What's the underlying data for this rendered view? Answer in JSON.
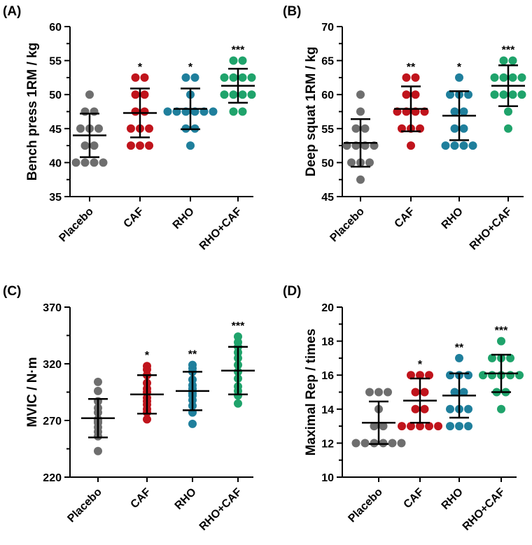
{
  "colors": {
    "Placebo": "#6e6e6e",
    "CAF": "#c0141c",
    "RHO": "#1f7f9c",
    "RHO+CAF": "#1fa36b",
    "axis": "#000000",
    "mean_sd": "#000000"
  },
  "chart_data": [
    {
      "type": "scatter",
      "panel_label": "(A)",
      "ylabel": "Bench press 1RM / kg",
      "ylim": [
        35,
        60
      ],
      "yticks": [
        35,
        40,
        45,
        50,
        55,
        60
      ],
      "categories": [
        "Placebo",
        "CAF",
        "RHO",
        "RHO+CAF"
      ],
      "series": [
        {
          "name": "Placebo",
          "mean": 44.0,
          "sd": 3.2,
          "significance": "",
          "values": [
            50,
            47.5,
            47.5,
            45,
            45,
            45,
            42.5,
            42.5,
            40,
            40,
            40,
            40
          ]
        },
        {
          "name": "CAF",
          "mean": 47.3,
          "sd": 3.6,
          "significance": "*",
          "values": [
            52.5,
            52.5,
            50,
            50,
            47.5,
            47.5,
            45,
            45,
            45,
            42.5,
            42.5,
            42.5
          ]
        },
        {
          "name": "RHO",
          "mean": 47.9,
          "sd": 3.0,
          "significance": "*",
          "values": [
            52.5,
            52.5,
            50,
            47.5,
            47.5,
            47.5,
            47.5,
            47.5,
            47.5,
            45,
            45,
            42.5
          ]
        },
        {
          "name": "RHO+CAF",
          "mean": 51.3,
          "sd": 2.5,
          "significance": "***",
          "values": [
            55,
            55,
            52.5,
            52.5,
            52.5,
            52.5,
            50,
            50,
            50,
            50,
            47.5,
            47.5
          ]
        }
      ]
    },
    {
      "type": "scatter",
      "panel_label": "(B)",
      "ylabel": "Deep squat 1RM / kg",
      "ylim": [
        45,
        70
      ],
      "yticks": [
        45,
        50,
        55,
        60,
        65,
        70
      ],
      "categories": [
        "Placebo",
        "CAF",
        "RHO",
        "RHO+CAF"
      ],
      "series": [
        {
          "name": "Placebo",
          "mean": 52.9,
          "sd": 3.5,
          "significance": "",
          "values": [
            60,
            57.5,
            55,
            55,
            52.5,
            52.5,
            52.5,
            52.5,
            50,
            50,
            50,
            47.5
          ]
        },
        {
          "name": "CAF",
          "mean": 57.9,
          "sd": 3.3,
          "significance": "**",
          "values": [
            62.5,
            62.5,
            60,
            60,
            57.5,
            57.5,
            57.5,
            57.5,
            55,
            55,
            55,
            52.5
          ]
        },
        {
          "name": "RHO",
          "mean": 56.9,
          "sd": 3.6,
          "significance": "*",
          "values": [
            62.5,
            60,
            60,
            60,
            57.5,
            57.5,
            55,
            55,
            52.5,
            52.5,
            52.5,
            52.5
          ]
        },
        {
          "name": "RHO+CAF",
          "mean": 61.3,
          "sd": 3.0,
          "significance": "***",
          "values": [
            65,
            65,
            62.5,
            62.5,
            62.5,
            62.5,
            60,
            60,
            60,
            60,
            57.5,
            55
          ]
        }
      ]
    },
    {
      "type": "scatter",
      "panel_label": "(C)",
      "ylabel": "MVIC / N·m",
      "ylim": [
        220,
        370
      ],
      "yticks": [
        220,
        270,
        320,
        370
      ],
      "categories": [
        "Placebo",
        "CAF",
        "RHO",
        "RHO+CAF"
      ],
      "series": [
        {
          "name": "Placebo",
          "mean": 272,
          "sd": 17,
          "significance": "",
          "values": [
            304,
            296,
            287,
            281,
            277,
            271,
            269,
            268,
            264,
            260,
            256,
            243
          ]
        },
        {
          "name": "CAF",
          "mean": 293,
          "sd": 17,
          "significance": "*",
          "values": [
            318,
            315,
            310,
            303,
            298,
            295,
            290,
            287,
            284,
            280,
            277,
            271
          ]
        },
        {
          "name": "RHO",
          "mean": 296,
          "sd": 17,
          "significance": "**",
          "values": [
            319,
            316,
            313,
            306,
            301,
            298,
            294,
            292,
            288,
            283,
            277,
            267
          ]
        },
        {
          "name": "RHO+CAF",
          "mean": 314,
          "sd": 21,
          "significance": "***",
          "values": [
            344,
            339,
            335,
            330,
            325,
            319,
            313,
            307,
            300,
            296,
            292,
            285
          ]
        }
      ]
    },
    {
      "type": "scatter",
      "panel_label": "(D)",
      "ylabel": "Maximal Rep / times",
      "ylim": [
        10,
        20
      ],
      "yticks": [
        10,
        12,
        14,
        16,
        18,
        20
      ],
      "categories": [
        "Placebo",
        "CAF",
        "RHO",
        "RHO+CAF"
      ],
      "series": [
        {
          "name": "Placebo",
          "mean": 13.2,
          "sd": 1.25,
          "significance": "",
          "values": [
            15,
            15,
            15,
            14,
            13,
            13,
            12,
            12,
            12,
            12,
            12,
            12
          ]
        },
        {
          "name": "CAF",
          "mean": 14.5,
          "sd": 1.3,
          "significance": "*",
          "values": [
            16,
            16,
            16,
            15,
            15,
            14,
            14,
            13,
            13,
            13,
            13,
            13
          ]
        },
        {
          "name": "RHO",
          "mean": 14.8,
          "sd": 1.3,
          "significance": "**",
          "values": [
            17,
            16,
            16,
            16,
            15,
            15,
            14,
            14,
            14,
            13,
            13,
            13
          ]
        },
        {
          "name": "RHO+CAF",
          "mean": 16.1,
          "sd": 1.1,
          "significance": "***",
          "values": [
            18,
            17,
            17,
            17,
            16,
            16,
            16,
            16,
            16,
            15,
            15,
            14
          ]
        }
      ]
    }
  ]
}
